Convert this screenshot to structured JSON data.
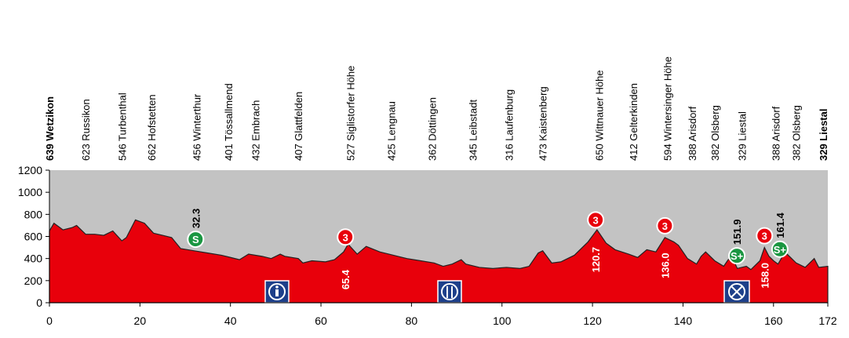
{
  "chart_data": {
    "type": "area",
    "xlim": [
      0,
      172
    ],
    "xticks": [
      0,
      20,
      40,
      60,
      80,
      100,
      120,
      140,
      160,
      172
    ],
    "ylim": [
      0,
      1200
    ],
    "yticks": [
      0,
      200,
      400,
      600,
      800,
      1000,
      1200
    ],
    "grid": false,
    "color": "#e8000b",
    "background": "#c3c3c3",
    "x": [
      0,
      1,
      3,
      5,
      6,
      8,
      10,
      12,
      14,
      16,
      17,
      19,
      21,
      23,
      25,
      27,
      29,
      32,
      35,
      38,
      40,
      42,
      44,
      47,
      49,
      51,
      52,
      55,
      56,
      58,
      61,
      63,
      65,
      66,
      68,
      70,
      73,
      76,
      79,
      82,
      85,
      87,
      89,
      91,
      92,
      95,
      98,
      101,
      104,
      106,
      108,
      109,
      111,
      113,
      116,
      119,
      121,
      123,
      125,
      128,
      130,
      132,
      134,
      136,
      138,
      139,
      141,
      143,
      144,
      145,
      147,
      149,
      150,
      151,
      152,
      154,
      155,
      157,
      158,
      159,
      160,
      161,
      162,
      163,
      165,
      167,
      169,
      170,
      172
    ],
    "values": [
      650,
      720,
      660,
      680,
      700,
      620,
      620,
      610,
      650,
      560,
      590,
      750,
      720,
      630,
      610,
      590,
      490,
      470,
      450,
      430,
      410,
      390,
      440,
      420,
      400,
      440,
      420,
      400,
      360,
      380,
      370,
      390,
      460,
      530,
      440,
      510,
      460,
      430,
      400,
      380,
      360,
      330,
      350,
      390,
      350,
      320,
      310,
      320,
      310,
      330,
      450,
      470,
      360,
      370,
      430,
      550,
      660,
      540,
      480,
      440,
      410,
      480,
      460,
      590,
      550,
      520,
      400,
      350,
      420,
      460,
      380,
      330,
      390,
      400,
      310,
      330,
      300,
      380,
      500,
      420,
      380,
      350,
      420,
      440,
      360,
      320,
      400,
      320,
      330
    ],
    "waypoints": [
      {
        "km": 0,
        "label": "639 Wetzikon"
      },
      {
        "km": 8,
        "label": "623 Russikon"
      },
      {
        "km": 16,
        "label": "546 Turbenthal"
      },
      {
        "km": 22.5,
        "label": "662 Hofstetten"
      },
      {
        "km": 32.5,
        "label": "456 Winterthur"
      },
      {
        "km": 39.5,
        "label": "401 Tössallmend"
      },
      {
        "km": 45.5,
        "label": "432 Embrach"
      },
      {
        "km": 55,
        "label": "407 Glattfelden"
      },
      {
        "km": 66.5,
        "label": "527 Siglistorfer Höhe"
      },
      {
        "km": 75.5,
        "label": "425 Lengnau"
      },
      {
        "km": 84.5,
        "label": "362 Döttingen"
      },
      {
        "km": 93.5,
        "label": "345 Leibstadt"
      },
      {
        "km": 101.5,
        "label": "316 Laufenburg"
      },
      {
        "km": 109,
        "label": "473 Kaistenberg"
      },
      {
        "km": 121.5,
        "label": "650 Wittnauer Höhe"
      },
      {
        "km": 129,
        "label": "412 Gelterkinden"
      },
      {
        "km": 136.5,
        "label": "594 Wintersinger Höhe"
      },
      {
        "km": 142,
        "label": "388 Arisdorf"
      },
      {
        "km": 147,
        "label": "382 Olsberg"
      },
      {
        "km": 153,
        "label": "329 Liestal"
      },
      {
        "km": 160.5,
        "label": "388 Arisdorf"
      },
      {
        "km": 165,
        "label": "382 Olsberg"
      },
      {
        "km": 171,
        "label": "329 Liestal"
      }
    ],
    "markers": [
      {
        "km": 32.3,
        "symbol": "S",
        "label": "32.3"
      },
      {
        "km": 65.4,
        "symbol": "3",
        "label": "65.4"
      },
      {
        "km": 120.7,
        "symbol": "3",
        "label": "120.7"
      },
      {
        "km": 136.0,
        "symbol": "3",
        "label": "136.0"
      },
      {
        "km": 151.9,
        "symbol": "S+",
        "label": "151.9"
      },
      {
        "km": 158.0,
        "symbol": "3",
        "label": "158.0"
      },
      {
        "km": 161.4,
        "symbol": "S+",
        "label": "161.4"
      }
    ]
  }
}
